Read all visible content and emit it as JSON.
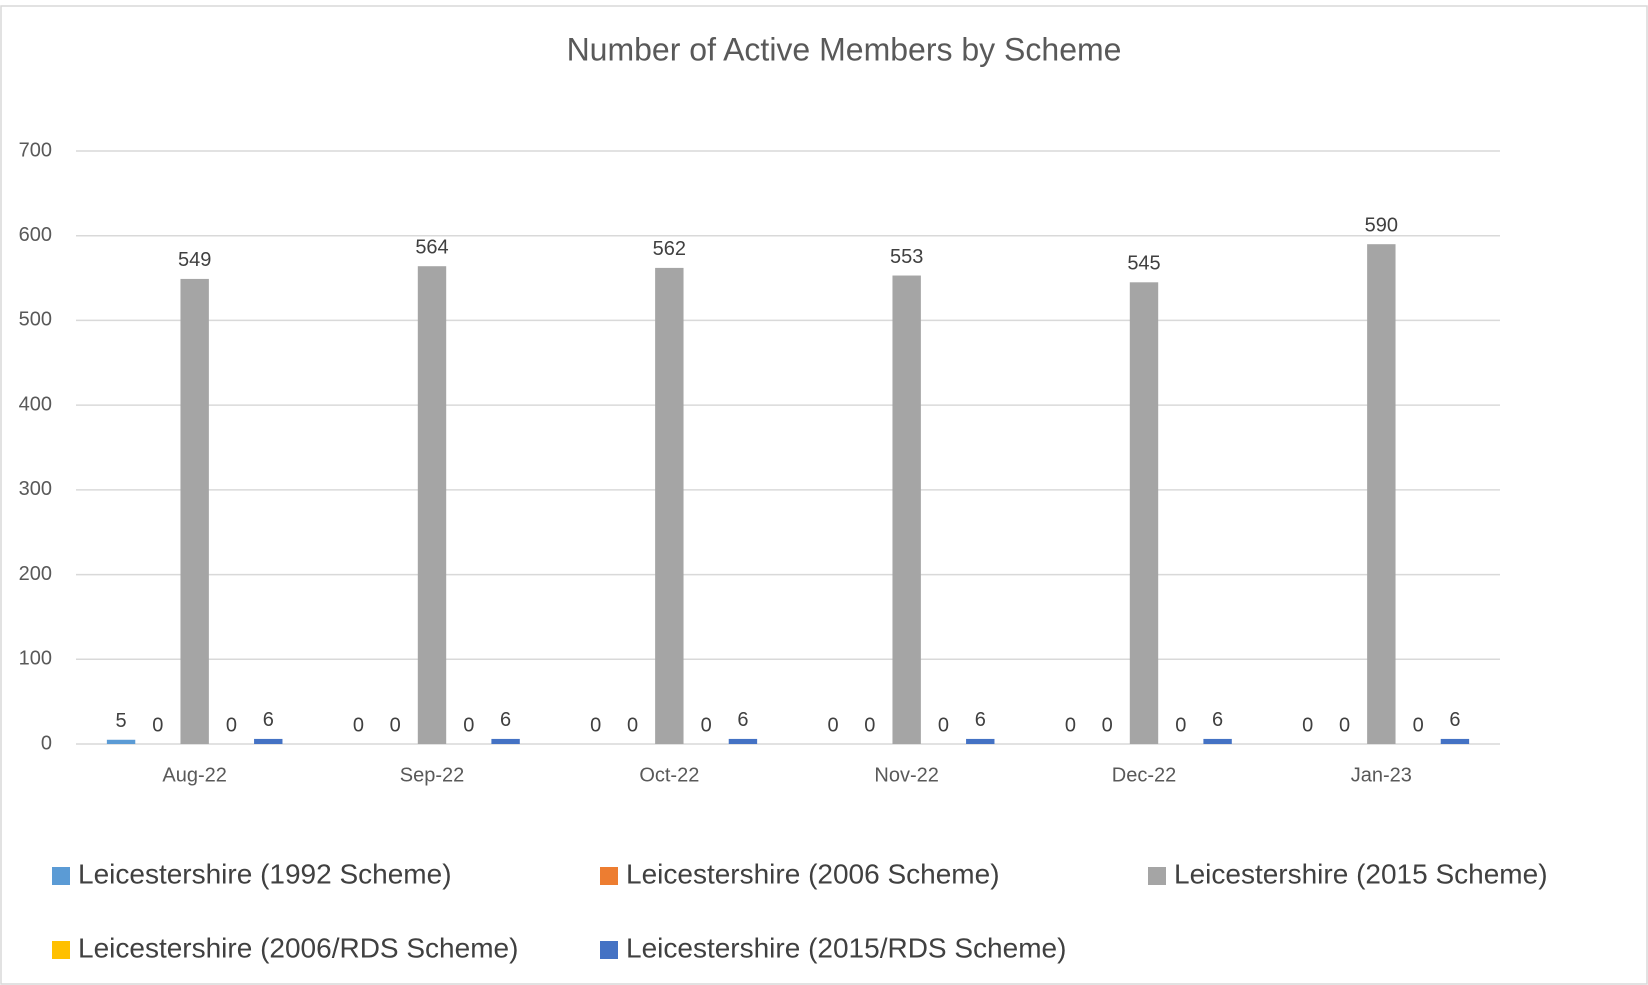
{
  "chart_data": {
    "type": "bar",
    "title": "Number of Active Members by Scheme",
    "categories": [
      "Aug-22",
      "Sep-22",
      "Oct-22",
      "Nov-22",
      "Dec-22",
      "Jan-23"
    ],
    "series": [
      {
        "name": "Leicestershire (1992 Scheme)",
        "color": "#5b9bd5",
        "values": [
          5,
          0,
          0,
          0,
          0,
          0
        ]
      },
      {
        "name": "Leicestershire (2006 Scheme)",
        "color": "#ed7d31",
        "values": [
          0,
          0,
          0,
          0,
          0,
          0
        ]
      },
      {
        "name": "Leicestershire (2015 Scheme)",
        "color": "#a5a5a5",
        "values": [
          549,
          564,
          562,
          553,
          545,
          590
        ]
      },
      {
        "name": "Leicestershire (2006/RDS Scheme)",
        "color": "#ffc000",
        "values": [
          0,
          0,
          0,
          0,
          0,
          0
        ]
      },
      {
        "name": "Leicestershire (2015/RDS Scheme)",
        "color": "#4472c4",
        "values": [
          6,
          6,
          6,
          6,
          6,
          6
        ]
      }
    ],
    "ylim": [
      0,
      700
    ],
    "yticks": [
      0,
      100,
      200,
      300,
      400,
      500,
      600,
      700
    ],
    "grid": true,
    "legend": "bottom"
  }
}
